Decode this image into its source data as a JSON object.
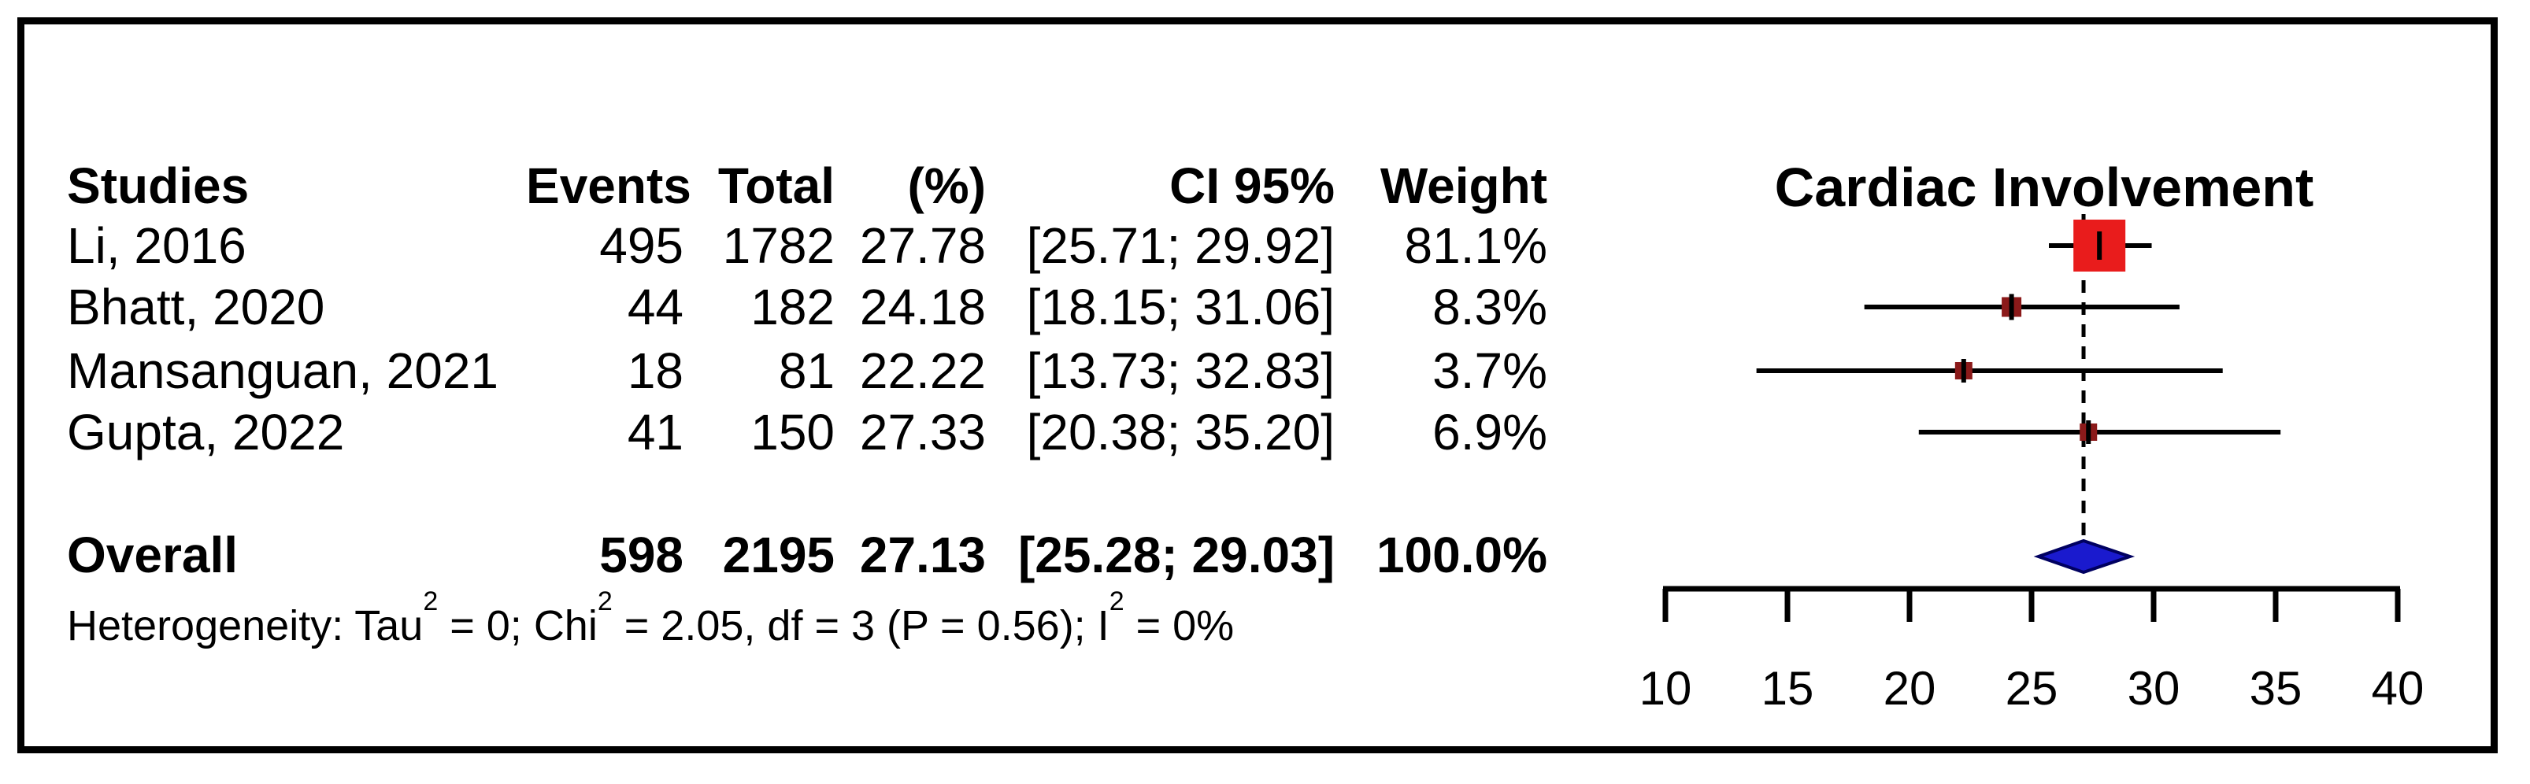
{
  "figure": {
    "title": "Cardiac Involvement"
  },
  "table": {
    "headers": {
      "studies": "Studies",
      "events": "Events",
      "total": "Total",
      "pct": "(%)",
      "ci": "CI 95%",
      "weight": "Weight"
    },
    "rows": [
      {
        "study": "Li, 2016",
        "events": "495",
        "total": "1782",
        "pct": "27.78",
        "ci": "[25.71; 29.92]",
        "weight": "81.1%"
      },
      {
        "study": "Bhatt, 2020",
        "events": "44",
        "total": "182",
        "pct": "24.18",
        "ci": "[18.15; 31.06]",
        "weight": "8.3%"
      },
      {
        "study": "Mansanguan, 2021",
        "events": "18",
        "total": "81",
        "pct": "22.22",
        "ci": "[13.73; 32.83]",
        "weight": "3.7%"
      },
      {
        "study": "Gupta, 2022",
        "events": "41",
        "total": "150",
        "pct": "27.33",
        "ci": "[20.38; 35.20]",
        "weight": "6.9%"
      }
    ],
    "overall": {
      "study": "Overall",
      "events": "598",
      "total": "2195",
      "pct": "27.13",
      "ci": "[25.28; 29.03]",
      "weight": "100.0%"
    }
  },
  "heterogeneity": {
    "segments": [
      {
        "t": "Heterogeneity: Tau"
      },
      {
        "t": "2",
        "sup": true
      },
      {
        "t": " = 0; Chi"
      },
      {
        "t": "2",
        "sup": true
      },
      {
        "t": " = 2.05, df = 3 (P = 0.56); I"
      },
      {
        "t": "2",
        "sup": true
      },
      {
        "t": " = 0%"
      }
    ]
  },
  "chart_data": {
    "type": "forest",
    "title": "Cardiac Involvement",
    "xlabel": "",
    "x_axis": {
      "min": 10,
      "max": 40,
      "ticks": [
        10,
        15,
        20,
        25,
        30,
        35,
        40
      ]
    },
    "grid": false,
    "overall_reference_line": 27.13,
    "studies": [
      {
        "name": "Li, 2016",
        "estimate": 27.78,
        "ci_low": 25.71,
        "ci_high": 29.92,
        "weight_pct": 81.1
      },
      {
        "name": "Bhatt, 2020",
        "estimate": 24.18,
        "ci_low": 18.15,
        "ci_high": 31.06,
        "weight_pct": 8.3
      },
      {
        "name": "Mansanguan, 2021",
        "estimate": 22.22,
        "ci_low": 13.73,
        "ci_high": 32.83,
        "weight_pct": 3.7
      },
      {
        "name": "Gupta, 2022",
        "estimate": 27.33,
        "ci_low": 20.38,
        "ci_high": 35.2,
        "weight_pct": 6.9
      }
    ],
    "overall_diamond": {
      "estimate": 27.13,
      "ci_low": 25.28,
      "ci_high": 29.03,
      "weight_pct": 100.0
    },
    "heterogeneity": {
      "tau2": 0,
      "chi2": 2.05,
      "df": 3,
      "p": 0.56,
      "i2_pct": 0
    },
    "colors": {
      "square_large": "#e91c1c",
      "square_small": "#8b1a1a",
      "diamond_fill": "#1a1ace",
      "diamond_border": "#000060",
      "line": "#000000"
    }
  }
}
